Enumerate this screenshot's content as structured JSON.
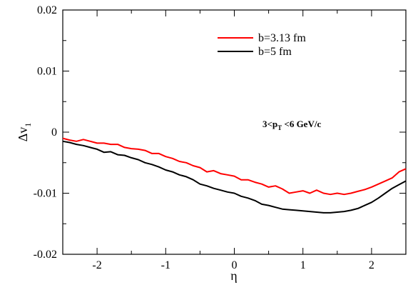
{
  "chart_data": {
    "type": "line",
    "xlabel": "η",
    "ylabel": {
      "main": "Δv",
      "sub": "1"
    },
    "xlim": [
      -2.5,
      2.5
    ],
    "ylim": [
      -0.02,
      0.02
    ],
    "xticks": [
      -2,
      -1,
      0,
      1,
      2
    ],
    "xtick_labels": [
      "-2",
      "-1",
      "0",
      "1",
      "2"
    ],
    "yticks": [
      -0.02,
      -0.01,
      0,
      0.01,
      0.02
    ],
    "ytick_labels": [
      "-0.02",
      "-0.01",
      "0",
      "0.01",
      "0.02"
    ],
    "annotation": {
      "prefix": "3<p",
      "sub": "T",
      "suffix": " <6 GeV/c"
    },
    "legend_position": "top-right",
    "series": [
      {
        "name": "b=3.13 fm",
        "color": "#ff0000",
        "x": [
          -2.5,
          -2.4,
          -2.3,
          -2.2,
          -2.1,
          -2.0,
          -1.9,
          -1.8,
          -1.7,
          -1.6,
          -1.5,
          -1.4,
          -1.3,
          -1.2,
          -1.1,
          -1.0,
          -0.9,
          -0.8,
          -0.7,
          -0.6,
          -0.5,
          -0.4,
          -0.3,
          -0.2,
          -0.1,
          0.0,
          0.1,
          0.2,
          0.3,
          0.4,
          0.5,
          0.6,
          0.7,
          0.8,
          0.9,
          1.0,
          1.1,
          1.2,
          1.3,
          1.4,
          1.5,
          1.6,
          1.7,
          1.8,
          1.9,
          2.0,
          2.1,
          2.2,
          2.3,
          2.4,
          2.5
        ],
        "y": [
          -0.001,
          -0.0013,
          -0.0015,
          -0.0012,
          -0.0015,
          -0.0018,
          -0.0018,
          -0.002,
          -0.002,
          -0.0025,
          -0.0027,
          -0.0028,
          -0.003,
          -0.0035,
          -0.0035,
          -0.004,
          -0.0043,
          -0.0048,
          -0.005,
          -0.0055,
          -0.0058,
          -0.0065,
          -0.0063,
          -0.0068,
          -0.007,
          -0.0072,
          -0.0078,
          -0.0078,
          -0.0082,
          -0.0085,
          -0.009,
          -0.0088,
          -0.0093,
          -0.01,
          -0.0098,
          -0.0096,
          -0.01,
          -0.0095,
          -0.01,
          -0.0102,
          -0.01,
          -0.0102,
          -0.01,
          -0.0097,
          -0.0094,
          -0.009,
          -0.0085,
          -0.008,
          -0.0075,
          -0.0065,
          -0.006
        ]
      },
      {
        "name": "b=5 fm",
        "color": "#000000",
        "x": [
          -2.5,
          -2.4,
          -2.3,
          -2.2,
          -2.1,
          -2.0,
          -1.9,
          -1.8,
          -1.7,
          -1.6,
          -1.5,
          -1.4,
          -1.3,
          -1.2,
          -1.1,
          -1.0,
          -0.9,
          -0.8,
          -0.7,
          -0.6,
          -0.5,
          -0.4,
          -0.3,
          -0.2,
          -0.1,
          0.0,
          0.1,
          0.2,
          0.3,
          0.4,
          0.5,
          0.6,
          0.7,
          0.8,
          0.9,
          1.0,
          1.1,
          1.2,
          1.3,
          1.4,
          1.5,
          1.6,
          1.7,
          1.8,
          1.9,
          2.0,
          2.1,
          2.2,
          2.3,
          2.4,
          2.5
        ],
        "y": [
          -0.0015,
          -0.0017,
          -0.002,
          -0.0022,
          -0.0025,
          -0.0028,
          -0.0033,
          -0.0032,
          -0.0037,
          -0.0038,
          -0.0042,
          -0.0045,
          -0.005,
          -0.0053,
          -0.0057,
          -0.0062,
          -0.0065,
          -0.007,
          -0.0073,
          -0.0078,
          -0.0085,
          -0.0088,
          -0.0092,
          -0.0095,
          -0.0098,
          -0.01,
          -0.0105,
          -0.0108,
          -0.0112,
          -0.0118,
          -0.012,
          -0.0123,
          -0.0126,
          -0.0127,
          -0.0128,
          -0.0129,
          -0.013,
          -0.0131,
          -0.0132,
          -0.0132,
          -0.0131,
          -0.013,
          -0.0128,
          -0.0125,
          -0.012,
          -0.0115,
          -0.0108,
          -0.01,
          -0.0092,
          -0.0086,
          -0.008
        ]
      }
    ]
  }
}
